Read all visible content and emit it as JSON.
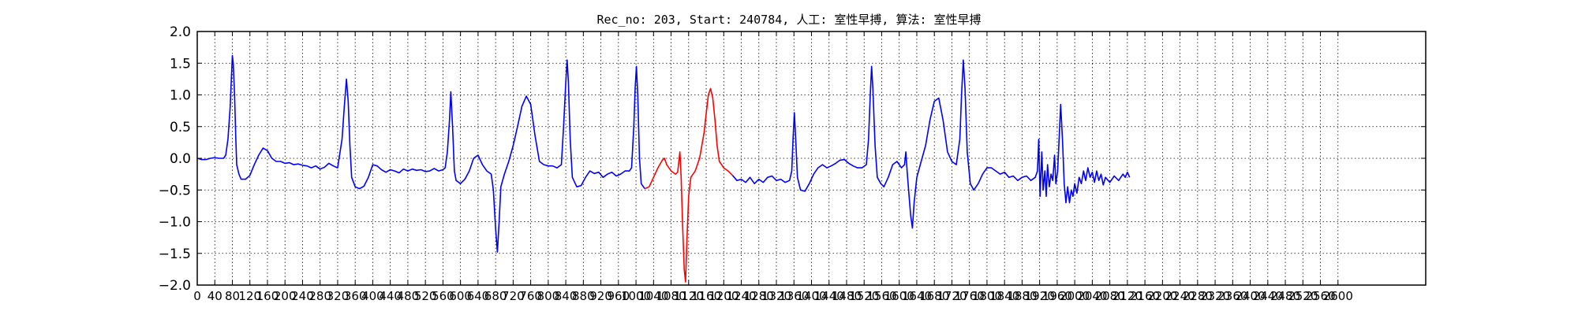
{
  "chart_data": {
    "type": "line",
    "title": "Rec_no: 203, Start: 240784, 人工: 室性早搏, 算法: 室性早搏",
    "xlabel": "",
    "ylabel": "",
    "xlim": [
      0,
      2800
    ],
    "ylim": [
      -2.0,
      2.0
    ],
    "grid": true,
    "y_ticks": [
      "2.0",
      "1.5",
      "1.0",
      "0.5",
      "0.0",
      "−0.5",
      "−1.0",
      "−1.5",
      "−2.0"
    ],
    "x_tick_step": 40,
    "x_ticks": [
      "0",
      "40",
      "80",
      "120",
      "160",
      "200",
      "240",
      "280",
      "320",
      "360",
      "400",
      "440",
      "480",
      "520",
      "560",
      "600",
      "640",
      "680",
      "720",
      "760",
      "800",
      "840",
      "880",
      "920",
      "960",
      "1000",
      "1040",
      "1080",
      "1120",
      "1160",
      "1200",
      "1240",
      "1280",
      "1320",
      "1360",
      "1400",
      "1440",
      "1480",
      "1520",
      "1560",
      "1600",
      "1640",
      "1680",
      "1720",
      "1760",
      "1800",
      "1840",
      "1880",
      "1920",
      "1960",
      "2000",
      "2040",
      "2080",
      "2120",
      "2160",
      "2200",
      "2240",
      "2280",
      "2320",
      "2360",
      "2400",
      "2440",
      "2480",
      "2520",
      "2560",
      "2600"
    ],
    "series": [
      {
        "color": "#0000ff",
        "points": [
          [
            0,
            0.0
          ],
          [
            10,
            -0.02
          ],
          [
            20,
            -0.02
          ],
          [
            30,
            0.0
          ],
          [
            40,
            0.01
          ],
          [
            50,
            0.0
          ],
          [
            60,
            0.0
          ],
          [
            65,
            0.05
          ],
          [
            70,
            0.3
          ],
          [
            75,
            0.8
          ],
          [
            78,
            1.3
          ],
          [
            80,
            1.62
          ],
          [
            82,
            1.5
          ],
          [
            85,
            1.0
          ],
          [
            88,
            0.3
          ],
          [
            90,
            -0.1
          ],
          [
            95,
            -0.25
          ],
          [
            100,
            -0.33
          ],
          [
            110,
            -0.33
          ],
          [
            120,
            -0.27
          ],
          [
            130,
            -0.1
          ],
          [
            140,
            0.05
          ],
          [
            150,
            0.16
          ],
          [
            160,
            0.12
          ],
          [
            170,
            0.0
          ],
          [
            180,
            -0.05
          ],
          [
            190,
            -0.05
          ],
          [
            200,
            -0.08
          ],
          [
            210,
            -0.07
          ],
          [
            220,
            -0.1
          ],
          [
            230,
            -0.09
          ],
          [
            240,
            -0.11
          ],
          [
            250,
            -0.12
          ],
          [
            260,
            -0.15
          ],
          [
            270,
            -0.12
          ],
          [
            280,
            -0.17
          ],
          [
            290,
            -0.14
          ],
          [
            300,
            -0.08
          ],
          [
            310,
            -0.12
          ],
          [
            320,
            -0.15
          ],
          [
            330,
            0.3
          ],
          [
            335,
            0.8
          ],
          [
            340,
            1.25
          ],
          [
            344,
            0.9
          ],
          [
            348,
            0.2
          ],
          [
            352,
            -0.3
          ],
          [
            360,
            -0.45
          ],
          [
            370,
            -0.48
          ],
          [
            380,
            -0.44
          ],
          [
            390,
            -0.3
          ],
          [
            400,
            -0.1
          ],
          [
            410,
            -0.12
          ],
          [
            420,
            -0.18
          ],
          [
            430,
            -0.22
          ],
          [
            440,
            -0.18
          ],
          [
            450,
            -0.2
          ],
          [
            460,
            -0.23
          ],
          [
            470,
            -0.17
          ],
          [
            480,
            -0.2
          ],
          [
            490,
            -0.17
          ],
          [
            500,
            -0.19
          ],
          [
            510,
            -0.18
          ],
          [
            520,
            -0.21
          ],
          [
            530,
            -0.2
          ],
          [
            540,
            -0.16
          ],
          [
            550,
            -0.2
          ],
          [
            560,
            -0.18
          ],
          [
            565,
            -0.15
          ],
          [
            570,
            0.1
          ],
          [
            575,
            0.6
          ],
          [
            578,
            1.05
          ],
          [
            582,
            0.5
          ],
          [
            586,
            -0.2
          ],
          [
            590,
            -0.35
          ],
          [
            600,
            -0.4
          ],
          [
            610,
            -0.33
          ],
          [
            620,
            -0.2
          ],
          [
            630,
            0.0
          ],
          [
            640,
            0.05
          ],
          [
            650,
            -0.1
          ],
          [
            660,
            -0.2
          ],
          [
            670,
            -0.25
          ],
          [
            675,
            -0.5
          ],
          [
            680,
            -1.1
          ],
          [
            684,
            -1.48
          ],
          [
            688,
            -1.0
          ],
          [
            692,
            -0.45
          ],
          [
            700,
            -0.25
          ],
          [
            710,
            -0.05
          ],
          [
            720,
            0.2
          ],
          [
            730,
            0.5
          ],
          [
            740,
            0.82
          ],
          [
            750,
            0.98
          ],
          [
            760,
            0.85
          ],
          [
            770,
            0.35
          ],
          [
            780,
            -0.05
          ],
          [
            790,
            -0.1
          ],
          [
            800,
            -0.12
          ],
          [
            810,
            -0.12
          ],
          [
            820,
            -0.15
          ],
          [
            830,
            -0.1
          ],
          [
            835,
            0.5
          ],
          [
            840,
            1.2
          ],
          [
            843,
            1.55
          ],
          [
            846,
            1.2
          ],
          [
            850,
            0.3
          ],
          [
            855,
            -0.3
          ],
          [
            865,
            -0.45
          ],
          [
            875,
            -0.43
          ],
          [
            885,
            -0.3
          ],
          [
            895,
            -0.2
          ],
          [
            905,
            -0.24
          ],
          [
            915,
            -0.22
          ],
          [
            925,
            -0.3
          ],
          [
            935,
            -0.25
          ],
          [
            945,
            -0.22
          ],
          [
            955,
            -0.28
          ],
          [
            965,
            -0.25
          ],
          [
            975,
            -0.2
          ],
          [
            985,
            -0.2
          ],
          [
            990,
            -0.15
          ],
          [
            995,
            0.5
          ],
          [
            998,
            1.1
          ],
          [
            1001,
            1.45
          ],
          [
            1004,
            1.0
          ],
          [
            1008,
            0.0
          ],
          [
            1012,
            -0.4
          ],
          [
            1020,
            -0.48
          ]
        ]
      },
      {
        "color": "#ff0000",
        "points": [
          [
            1020,
            -0.48
          ],
          [
            1030,
            -0.45
          ],
          [
            1040,
            -0.3
          ],
          [
            1050,
            -0.15
          ],
          [
            1060,
            -0.03
          ],
          [
            1065,
            0.0
          ],
          [
            1070,
            -0.1
          ],
          [
            1080,
            -0.2
          ],
          [
            1090,
            -0.25
          ],
          [
            1095,
            -0.22
          ],
          [
            1100,
            0.1
          ],
          [
            1103,
            -0.3
          ],
          [
            1106,
            -1.0
          ],
          [
            1110,
            -1.75
          ],
          [
            1113,
            -1.95
          ],
          [
            1116,
            -1.3
          ],
          [
            1120,
            -0.6
          ],
          [
            1125,
            -0.3
          ],
          [
            1135,
            -0.2
          ],
          [
            1145,
            0.0
          ],
          [
            1155,
            0.4
          ],
          [
            1160,
            0.7
          ],
          [
            1165,
            1.0
          ],
          [
            1170,
            1.1
          ],
          [
            1175,
            0.95
          ],
          [
            1180,
            0.6
          ],
          [
            1185,
            0.2
          ],
          [
            1190,
            -0.05
          ],
          [
            1200,
            -0.15
          ],
          [
            1210,
            -0.2
          ],
          [
            1220,
            -0.27
          ]
        ]
      },
      {
        "color": "#0000ff",
        "points": [
          [
            1220,
            -0.27
          ],
          [
            1230,
            -0.35
          ],
          [
            1240,
            -0.33
          ],
          [
            1250,
            -0.38
          ],
          [
            1260,
            -0.3
          ],
          [
            1270,
            -0.4
          ],
          [
            1280,
            -0.33
          ],
          [
            1290,
            -0.38
          ],
          [
            1300,
            -0.3
          ],
          [
            1310,
            -0.28
          ],
          [
            1320,
            -0.35
          ],
          [
            1330,
            -0.33
          ],
          [
            1340,
            -0.38
          ],
          [
            1350,
            -0.35
          ],
          [
            1355,
            -0.2
          ],
          [
            1358,
            0.3
          ],
          [
            1361,
            0.72
          ],
          [
            1364,
            0.3
          ],
          [
            1368,
            -0.3
          ],
          [
            1375,
            -0.5
          ],
          [
            1385,
            -0.52
          ],
          [
            1395,
            -0.4
          ],
          [
            1405,
            -0.25
          ],
          [
            1415,
            -0.15
          ],
          [
            1425,
            -0.1
          ],
          [
            1435,
            -0.15
          ],
          [
            1445,
            -0.12
          ],
          [
            1455,
            -0.08
          ],
          [
            1465,
            -0.03
          ],
          [
            1475,
            -0.02
          ],
          [
            1485,
            -0.08
          ],
          [
            1495,
            -0.12
          ],
          [
            1505,
            -0.15
          ],
          [
            1515,
            -0.15
          ],
          [
            1525,
            -0.1
          ],
          [
            1530,
            0.3
          ],
          [
            1534,
            1.0
          ],
          [
            1537,
            1.45
          ],
          [
            1540,
            1.1
          ],
          [
            1545,
            0.2
          ],
          [
            1550,
            -0.3
          ],
          [
            1558,
            -0.4
          ],
          [
            1565,
            -0.45
          ],
          [
            1575,
            -0.3
          ],
          [
            1585,
            -0.1
          ],
          [
            1595,
            -0.05
          ],
          [
            1605,
            -0.15
          ],
          [
            1612,
            -0.1
          ],
          [
            1615,
            0.1
          ],
          [
            1618,
            -0.2
          ],
          [
            1622,
            -0.55
          ],
          [
            1626,
            -0.9
          ],
          [
            1630,
            -1.1
          ],
          [
            1634,
            -0.7
          ],
          [
            1640,
            -0.3
          ],
          [
            1650,
            -0.05
          ],
          [
            1660,
            0.2
          ],
          [
            1670,
            0.6
          ],
          [
            1680,
            0.9
          ],
          [
            1690,
            0.95
          ],
          [
            1700,
            0.6
          ],
          [
            1710,
            0.1
          ],
          [
            1720,
            -0.05
          ],
          [
            1730,
            -0.1
          ],
          [
            1738,
            0.3
          ],
          [
            1742,
            1.0
          ],
          [
            1746,
            1.55
          ],
          [
            1750,
            1.1
          ],
          [
            1755,
            0.1
          ],
          [
            1762,
            -0.4
          ],
          [
            1770,
            -0.5
          ],
          [
            1780,
            -0.4
          ],
          [
            1790,
            -0.25
          ],
          [
            1800,
            -0.15
          ],
          [
            1810,
            -0.15
          ],
          [
            1820,
            -0.2
          ],
          [
            1830,
            -0.25
          ],
          [
            1840,
            -0.22
          ],
          [
            1850,
            -0.3
          ],
          [
            1860,
            -0.28
          ],
          [
            1870,
            -0.35
          ],
          [
            1880,
            -0.3
          ],
          [
            1890,
            -0.28
          ],
          [
            1900,
            -0.35
          ],
          [
            1910,
            -0.3
          ],
          [
            1915,
            -0.2
          ],
          [
            1918,
            0.3
          ],
          [
            1921,
            -0.6
          ],
          [
            1925,
            0.1
          ],
          [
            1928,
            -0.5
          ],
          [
            1932,
            -0.2
          ],
          [
            1935,
            -0.6
          ],
          [
            1938,
            -0.1
          ],
          [
            1942,
            -0.45
          ],
          [
            1946,
            -0.25
          ],
          [
            1950,
            -0.35
          ],
          [
            1954,
            0.05
          ],
          [
            1957,
            -0.4
          ],
          [
            1961,
            -0.2
          ],
          [
            1965,
            0.4
          ],
          [
            1968,
            0.85
          ],
          [
            1972,
            0.3
          ],
          [
            1976,
            -0.4
          ],
          [
            1980,
            -0.7
          ],
          [
            1984,
            -0.45
          ],
          [
            1988,
            -0.7
          ],
          [
            1992,
            -0.5
          ],
          [
            1996,
            -0.6
          ],
          [
            2000,
            -0.4
          ],
          [
            2005,
            -0.55
          ],
          [
            2010,
            -0.3
          ],
          [
            2015,
            -0.4
          ],
          [
            2020,
            -0.2
          ],
          [
            2025,
            -0.35
          ],
          [
            2030,
            -0.15
          ],
          [
            2035,
            -0.3
          ],
          [
            2040,
            -0.22
          ],
          [
            2045,
            -0.38
          ],
          [
            2050,
            -0.2
          ],
          [
            2055,
            -0.35
          ],
          [
            2060,
            -0.25
          ],
          [
            2065,
            -0.42
          ],
          [
            2070,
            -0.3
          ],
          [
            2080,
            -0.38
          ],
          [
            2090,
            -0.28
          ],
          [
            2100,
            -0.35
          ],
          [
            2110,
            -0.25
          ],
          [
            2115,
            -0.3
          ],
          [
            2120,
            -0.22
          ],
          [
            2125,
            -0.3
          ]
        ]
      }
    ]
  }
}
